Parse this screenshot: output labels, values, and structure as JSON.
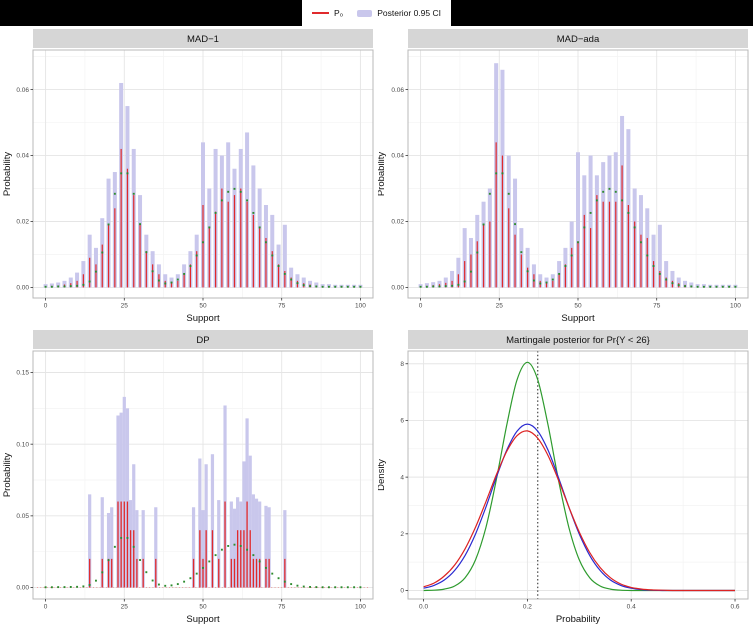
{
  "colors": {
    "p_red": "#e02a2c",
    "ci_fill": "#c9c7ec",
    "truth_green": "#2e8b2e",
    "line_green": "#2e9b2e",
    "line_blue": "#2a2ad0",
    "line_red": "#dd2222",
    "strip_bg": "#d6d6d6",
    "grid_major": "#e5e5e5",
    "grid_minor": "#f3f3f3",
    "panel_border": "#b9b9b9",
    "vline": "#222222",
    "zero_dotted": "#ef9a9a",
    "tick_text": "#4a4a4a",
    "axis_text": "#111111",
    "topbar_bg": "#000000"
  },
  "legend": {
    "items": [
      {
        "label": "P₀",
        "type": "line"
      },
      {
        "label": "Posterior 0.95 CI",
        "type": "fill"
      }
    ]
  },
  "chart_data": [
    {
      "type": "pmf",
      "title": "MAD−1",
      "xlabel": "Support",
      "ylabel": "Probability",
      "xlim": [
        -4,
        104
      ],
      "ylim": [
        -0.0032,
        0.072
      ],
      "x_ticks": [
        0,
        25,
        50,
        75,
        100
      ],
      "x_tick_labels": [
        "0",
        "25",
        "50",
        "75",
        "100"
      ],
      "y_ticks": [
        0,
        0.02,
        0.04,
        0.06
      ],
      "y_tick_labels": [
        "0.00",
        "0.02",
        "0.04",
        "0.06"
      ],
      "bars": {
        "x": [
          0,
          2,
          4,
          6,
          8,
          10,
          12,
          14,
          16,
          18,
          20,
          22,
          24,
          26,
          28,
          30,
          32,
          34,
          36,
          38,
          40,
          42,
          44,
          46,
          48,
          50,
          52,
          54,
          56,
          58,
          60,
          62,
          64,
          66,
          68,
          70,
          72,
          74,
          76,
          78,
          80,
          82,
          84,
          86,
          88,
          90,
          92,
          94,
          96,
          98,
          100
        ],
        "ci_upper": [
          0.001,
          0.0012,
          0.0015,
          0.002,
          0.003,
          0.0045,
          0.008,
          0.016,
          0.012,
          0.021,
          0.033,
          0.035,
          0.062,
          0.055,
          0.042,
          0.028,
          0.016,
          0.011,
          0.007,
          0.004,
          0.003,
          0.004,
          0.007,
          0.011,
          0.016,
          0.044,
          0.03,
          0.042,
          0.04,
          0.044,
          0.036,
          0.042,
          0.047,
          0.037,
          0.03,
          0.025,
          0.022,
          0.013,
          0.019,
          0.006,
          0.004,
          0.003,
          0.002,
          0.0015,
          0.001,
          0.001,
          0.0008,
          0.0008,
          0.0008,
          0.0008,
          0.0008
        ],
        "p": [
          0.0004,
          0.0005,
          0.0006,
          0.0009,
          0.0013,
          0.002,
          0.004,
          0.009,
          0.007,
          0.013,
          0.019,
          0.024,
          0.042,
          0.036,
          0.028,
          0.019,
          0.011,
          0.007,
          0.004,
          0.002,
          0.0015,
          0.002,
          0.004,
          0.007,
          0.011,
          0.025,
          0.018,
          0.023,
          0.03,
          0.026,
          0.028,
          0.03,
          0.026,
          0.022,
          0.018,
          0.015,
          0.011,
          0.007,
          0.005,
          0.003,
          0.002,
          0.0013,
          0.0009,
          0.0006,
          0.0004,
          0.0003,
          0.0003,
          0.0002,
          0.0002,
          0.0002,
          0.0002
        ]
      },
      "truth": {
        "x": [
          0,
          2,
          4,
          6,
          8,
          10,
          12,
          14,
          16,
          18,
          20,
          22,
          24,
          26,
          28,
          30,
          32,
          34,
          36,
          38,
          40,
          42,
          44,
          46,
          48,
          50,
          52,
          54,
          56,
          58,
          60,
          62,
          64,
          66,
          68,
          70,
          72,
          74,
          76,
          78,
          80,
          82,
          84,
          86,
          88,
          90,
          92,
          94,
          96,
          98,
          100
        ],
        "y": [
          0.0002,
          0.0002,
          0.0003,
          0.0003,
          0.0004,
          0.0005,
          0.0008,
          0.0018,
          0.0048,
          0.0106,
          0.0191,
          0.0284,
          0.0346,
          0.0346,
          0.0284,
          0.0192,
          0.0107,
          0.0049,
          0.0021,
          0.0012,
          0.0015,
          0.0024,
          0.0041,
          0.0065,
          0.0097,
          0.0137,
          0.0182,
          0.0226,
          0.0264,
          0.029,
          0.0299,
          0.029,
          0.0264,
          0.0226,
          0.0182,
          0.0137,
          0.0097,
          0.0065,
          0.0041,
          0.0024,
          0.0013,
          0.0007,
          0.0004,
          0.0003,
          0.0002,
          0.0002,
          0.0002,
          0.0002,
          0.0002,
          0.0002,
          0.0002
        ]
      }
    },
    {
      "type": "pmf",
      "title": "MAD−ada",
      "xlabel": "Support",
      "ylabel": "Probability",
      "xlim": [
        -4,
        104
      ],
      "ylim": [
        -0.0032,
        0.072
      ],
      "x_ticks": [
        0,
        25,
        50,
        75,
        100
      ],
      "x_tick_labels": [
        "0",
        "25",
        "50",
        "75",
        "100"
      ],
      "y_ticks": [
        0,
        0.02,
        0.04,
        0.06
      ],
      "y_tick_labels": [
        "0.00",
        "0.02",
        "0.04",
        "0.06"
      ],
      "bars": {
        "x": [
          0,
          2,
          4,
          6,
          8,
          10,
          12,
          14,
          16,
          18,
          20,
          22,
          24,
          26,
          28,
          30,
          32,
          34,
          36,
          38,
          40,
          42,
          44,
          46,
          48,
          50,
          52,
          54,
          56,
          58,
          60,
          62,
          64,
          66,
          68,
          70,
          72,
          74,
          76,
          78,
          80,
          82,
          84,
          86,
          88,
          90,
          92,
          94,
          96,
          98,
          100
        ],
        "ci_upper": [
          0.001,
          0.0013,
          0.0016,
          0.002,
          0.003,
          0.005,
          0.009,
          0.018,
          0.015,
          0.022,
          0.026,
          0.03,
          0.068,
          0.066,
          0.04,
          0.033,
          0.018,
          0.012,
          0.007,
          0.004,
          0.003,
          0.004,
          0.008,
          0.012,
          0.02,
          0.041,
          0.034,
          0.04,
          0.034,
          0.038,
          0.04,
          0.041,
          0.052,
          0.048,
          0.03,
          0.028,
          0.024,
          0.016,
          0.019,
          0.008,
          0.005,
          0.003,
          0.002,
          0.0015,
          0.001,
          0.001,
          0.0008,
          0.0008,
          0.0008,
          0.0008,
          0.0008
        ],
        "p": [
          0.0004,
          0.0005,
          0.0007,
          0.001,
          0.0014,
          0.002,
          0.004,
          0.008,
          0.01,
          0.014,
          0.019,
          0.02,
          0.044,
          0.04,
          0.024,
          0.016,
          0.01,
          0.006,
          0.004,
          0.002,
          0.0015,
          0.002,
          0.004,
          0.007,
          0.012,
          0.014,
          0.022,
          0.018,
          0.028,
          0.026,
          0.026,
          0.026,
          0.037,
          0.025,
          0.02,
          0.016,
          0.015,
          0.008,
          0.005,
          0.003,
          0.002,
          0.0013,
          0.0008,
          0.0005,
          0.0004,
          0.0003,
          0.0002,
          0.0002,
          0.0002,
          0.0002,
          0.0002
        ]
      },
      "truth": {
        "x": [
          0,
          2,
          4,
          6,
          8,
          10,
          12,
          14,
          16,
          18,
          20,
          22,
          24,
          26,
          28,
          30,
          32,
          34,
          36,
          38,
          40,
          42,
          44,
          46,
          48,
          50,
          52,
          54,
          56,
          58,
          60,
          62,
          64,
          66,
          68,
          70,
          72,
          74,
          76,
          78,
          80,
          82,
          84,
          86,
          88,
          90,
          92,
          94,
          96,
          98,
          100
        ],
        "y": [
          0.0002,
          0.0002,
          0.0003,
          0.0003,
          0.0004,
          0.0005,
          0.0008,
          0.0018,
          0.0048,
          0.0106,
          0.0191,
          0.0284,
          0.0346,
          0.0346,
          0.0284,
          0.0192,
          0.0107,
          0.0049,
          0.0021,
          0.0012,
          0.0015,
          0.0024,
          0.0041,
          0.0065,
          0.0097,
          0.0137,
          0.0182,
          0.0226,
          0.0264,
          0.029,
          0.0299,
          0.029,
          0.0264,
          0.0226,
          0.0182,
          0.0137,
          0.0097,
          0.0065,
          0.0041,
          0.0024,
          0.0013,
          0.0007,
          0.0004,
          0.0003,
          0.0002,
          0.0002,
          0.0002,
          0.0002,
          0.0002,
          0.0002,
          0.0002
        ]
      }
    },
    {
      "type": "pmf",
      "title": "DP",
      "xlabel": "Support",
      "ylabel": "Probability",
      "xlim": [
        -4,
        104
      ],
      "ylim": [
        -0.008,
        0.165
      ],
      "x_ticks": [
        0,
        25,
        50,
        75,
        100
      ],
      "x_tick_labels": [
        "0",
        "25",
        "50",
        "75",
        "100"
      ],
      "y_ticks": [
        0,
        0.05,
        0.1,
        0.15
      ],
      "y_tick_labels": [
        "0.00",
        "0.05",
        "0.10",
        "0.15"
      ],
      "zero_baseline": true,
      "bars": {
        "x": [
          14,
          18,
          20,
          21,
          23,
          24,
          25,
          26,
          27,
          28,
          29,
          31,
          35,
          47,
          49,
          50,
          51,
          53,
          55,
          57,
          59,
          60,
          61,
          62,
          63,
          64,
          65,
          66,
          67,
          68,
          70,
          71,
          76
        ],
        "ci_upper": [
          0.065,
          0.063,
          0.052,
          0.056,
          0.12,
          0.122,
          0.133,
          0.125,
          0.061,
          0.086,
          0.054,
          0.054,
          0.056,
          0.056,
          0.09,
          0.054,
          0.086,
          0.093,
          0.061,
          0.127,
          0.06,
          0.055,
          0.063,
          0.06,
          0.088,
          0.118,
          0.092,
          0.065,
          0.062,
          0.06,
          0.057,
          0.056,
          0.054
        ],
        "p": [
          0.02,
          0.02,
          0.02,
          0.02,
          0.06,
          0.06,
          0.06,
          0.06,
          0.04,
          0.04,
          0.02,
          0.02,
          0.02,
          0.02,
          0.04,
          0.02,
          0.04,
          0.04,
          0.02,
          0.06,
          0.02,
          0.02,
          0.04,
          0.04,
          0.04,
          0.06,
          0.04,
          0.02,
          0.02,
          0.02,
          0.02,
          0.02,
          0.02
        ]
      },
      "truth": {
        "x": [
          0,
          2,
          4,
          6,
          8,
          10,
          12,
          14,
          16,
          18,
          20,
          22,
          24,
          26,
          28,
          30,
          32,
          34,
          36,
          38,
          40,
          42,
          44,
          46,
          48,
          50,
          52,
          54,
          56,
          58,
          60,
          62,
          64,
          66,
          68,
          70,
          72,
          74,
          76,
          78,
          80,
          82,
          84,
          86,
          88,
          90,
          92,
          94,
          96,
          98,
          100
        ],
        "y": [
          0.0002,
          0.0002,
          0.0003,
          0.0003,
          0.0004,
          0.0005,
          0.0008,
          0.0018,
          0.0048,
          0.0106,
          0.0191,
          0.0284,
          0.0346,
          0.0346,
          0.0284,
          0.0192,
          0.0107,
          0.0049,
          0.0021,
          0.0012,
          0.0015,
          0.0024,
          0.0041,
          0.0065,
          0.0097,
          0.0137,
          0.0182,
          0.0226,
          0.0264,
          0.029,
          0.0299,
          0.029,
          0.0264,
          0.0226,
          0.0182,
          0.0137,
          0.0097,
          0.0065,
          0.0041,
          0.0024,
          0.0013,
          0.0007,
          0.0004,
          0.0003,
          0.0002,
          0.0002,
          0.0002,
          0.0002,
          0.0002,
          0.0002,
          0.0002
        ]
      }
    },
    {
      "type": "density",
      "title": "Martingale posterior for Pr{Y < 26}",
      "xlabel": "Probability",
      "ylabel": "Density",
      "xlim": [
        -0.03,
        0.625
      ],
      "ylim": [
        -0.3,
        8.45
      ],
      "x_ticks": [
        0,
        0.2,
        0.4,
        0.6
      ],
      "x_tick_labels": [
        "0.0",
        "0.2",
        "0.4",
        "0.6"
      ],
      "y_ticks": [
        0,
        2,
        4,
        6,
        8
      ],
      "y_tick_labels": [
        "0",
        "2",
        "4",
        "6",
        "8"
      ],
      "vline": 0.22,
      "x": [
        0,
        0.02,
        0.04,
        0.06,
        0.08,
        0.1,
        0.12,
        0.14,
        0.16,
        0.18,
        0.2,
        0.22,
        0.24,
        0.26,
        0.28,
        0.3,
        0.32,
        0.34,
        0.36,
        0.38,
        0.4,
        0.42,
        0.44,
        0.46,
        0.48,
        0.5,
        0.52,
        0.54,
        0.56,
        0.58,
        0.6
      ],
      "series": [
        {
          "name": "green",
          "color_key": "line_green",
          "y": [
            0,
            0.01,
            0.05,
            0.16,
            0.45,
            1.08,
            2.22,
            3.89,
            5.81,
            7.43,
            8.05,
            7.43,
            5.81,
            3.89,
            2.22,
            1.08,
            0.45,
            0.16,
            0.05,
            0.01,
            0,
            0,
            0,
            0,
            0,
            0,
            0,
            0,
            0,
            0,
            0
          ]
        },
        {
          "name": "blue",
          "color_key": "line_blue",
          "y": [
            0.08,
            0.18,
            0.37,
            0.71,
            1.24,
            1.99,
            2.94,
            3.98,
            4.94,
            5.62,
            5.87,
            5.62,
            4.94,
            3.98,
            2.94,
            1.99,
            1.24,
            0.71,
            0.37,
            0.18,
            0.08,
            0.03,
            0.01,
            0,
            0,
            0,
            0,
            0,
            0,
            0,
            0
          ]
        },
        {
          "name": "red",
          "color_key": "line_red",
          "y": [
            0.13,
            0.26,
            0.51,
            0.9,
            1.47,
            2.23,
            3.13,
            4.07,
            4.9,
            5.46,
            5.63,
            5.37,
            4.75,
            3.89,
            2.94,
            2.06,
            1.34,
            0.81,
            0.45,
            0.23,
            0.11,
            0.05,
            0.02,
            0.01,
            0,
            0,
            0,
            0,
            0,
            0,
            0
          ]
        }
      ]
    }
  ]
}
